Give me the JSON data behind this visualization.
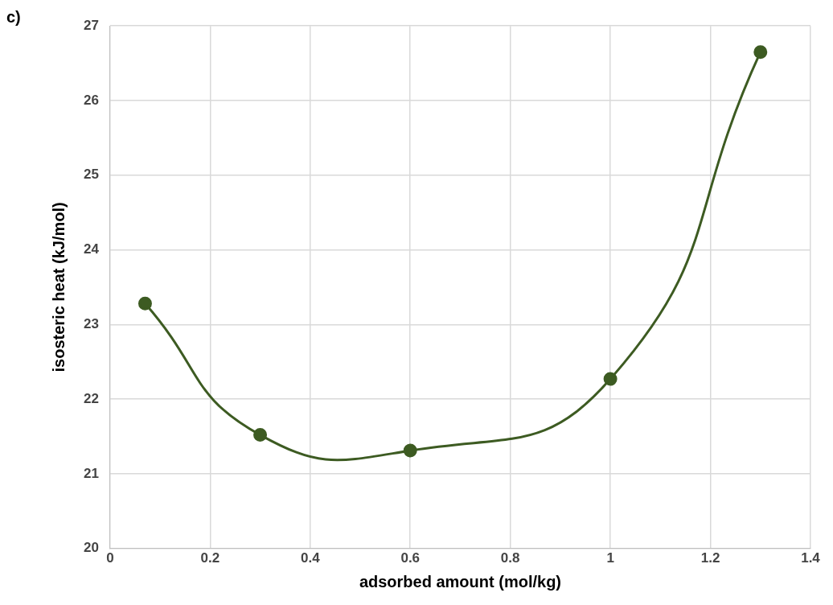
{
  "chart_data": {
    "type": "line",
    "xlabel": "adsorbed amount (mol/kg)",
    "ylabel": "isosteric heat (kJ/mol)",
    "annotations": [
      "c)"
    ],
    "x": [
      0.07,
      0.3,
      0.6,
      1,
      1.3
    ],
    "series": [
      {
        "color": "#3d5b22",
        "values": [
          23.28,
          21.52,
          21.31,
          22.27,
          26.65
        ]
      }
    ],
    "xlim": [
      0,
      1.4
    ],
    "xticks": [
      0,
      0.2,
      0.4,
      0.6,
      0.8,
      1,
      1.2,
      1.4
    ],
    "ylim": [
      20,
      27
    ],
    "yticks": [
      20,
      21,
      22,
      23,
      24,
      25,
      26,
      27
    ],
    "grid": true,
    "legend": false,
    "marker": "circle",
    "line_style": "solid"
  }
}
